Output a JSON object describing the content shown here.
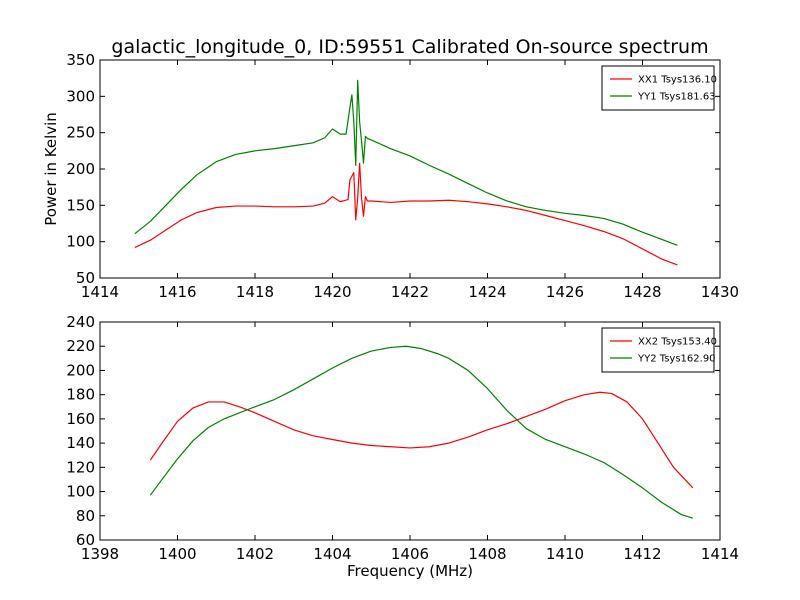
{
  "figure_title": "galactic_longitude_0, ID:59551 Calibrated On-source spectrum",
  "chart_data": [
    {
      "type": "line",
      "title": "galactic_longitude_0, ID:59551 Calibrated On-source spectrum",
      "xlabel": "",
      "ylabel": "Power in Kelvin",
      "xlim": [
        1414,
        1430
      ],
      "ylim": [
        50,
        350
      ],
      "xticks": [
        1414,
        1416,
        1418,
        1420,
        1422,
        1424,
        1426,
        1428,
        1430
      ],
      "yticks": [
        50,
        100,
        150,
        200,
        250,
        300,
        350
      ],
      "grid": false,
      "legend_position": "top-right",
      "series": [
        {
          "name": "XX1 Tsys136.10",
          "color": "#ff0000",
          "x": [
            1414.9,
            1415.3,
            1415.7,
            1416.1,
            1416.5,
            1417.0,
            1417.5,
            1418.0,
            1418.5,
            1419.0,
            1419.5,
            1419.8,
            1420.0,
            1420.2,
            1420.4,
            1420.45,
            1420.55,
            1420.6,
            1420.65,
            1420.7,
            1420.75,
            1420.8,
            1420.85,
            1420.9,
            1421.0,
            1421.5,
            1422.0,
            1422.5,
            1423.0,
            1423.5,
            1424.0,
            1424.5,
            1425.0,
            1425.5,
            1426.0,
            1426.5,
            1427.0,
            1427.5,
            1428.0,
            1428.5,
            1428.9
          ],
          "y": [
            92,
            102,
            116,
            130,
            140,
            147,
            149,
            149,
            148,
            148,
            149,
            153,
            162,
            155,
            158,
            185,
            195,
            130,
            160,
            208,
            160,
            135,
            162,
            156,
            156,
            154,
            156,
            156,
            157,
            155,
            152,
            148,
            143,
            136,
            129,
            122,
            114,
            104,
            90,
            76,
            68
          ]
        },
        {
          "name": "YY1 Tsys181.63",
          "color": "#008000",
          "x": [
            1414.9,
            1415.3,
            1415.7,
            1416.1,
            1416.5,
            1417.0,
            1417.5,
            1418.0,
            1418.5,
            1419.0,
            1419.5,
            1419.8,
            1420.0,
            1420.2,
            1420.35,
            1420.45,
            1420.5,
            1420.55,
            1420.6,
            1420.65,
            1420.7,
            1420.75,
            1420.8,
            1420.85,
            1420.9,
            1421.0,
            1421.5,
            1422.0,
            1422.5,
            1423.0,
            1423.5,
            1424.0,
            1424.5,
            1425.0,
            1425.5,
            1426.0,
            1426.5,
            1427.0,
            1427.5,
            1428.0,
            1428.5,
            1428.9
          ],
          "y": [
            111,
            128,
            150,
            172,
            192,
            210,
            220,
            225,
            228,
            232,
            236,
            243,
            255,
            248,
            248,
            285,
            302,
            265,
            205,
            322,
            265,
            238,
            208,
            245,
            242,
            240,
            228,
            218,
            205,
            193,
            180,
            167,
            156,
            148,
            143,
            139,
            136,
            132,
            124,
            113,
            103,
            95
          ]
        }
      ]
    },
    {
      "type": "line",
      "title": "",
      "xlabel": "Frequency (MHz)",
      "ylabel": "",
      "xlim": [
        1398,
        1414
      ],
      "ylim": [
        60,
        240
      ],
      "xticks": [
        1398,
        1400,
        1402,
        1404,
        1406,
        1408,
        1410,
        1412,
        1414
      ],
      "yticks": [
        60,
        80,
        100,
        120,
        140,
        160,
        180,
        200,
        220,
        240
      ],
      "grid": false,
      "legend_position": "top-right",
      "series": [
        {
          "name": "XX2 Tsys153.40",
          "color": "#ff0000",
          "x": [
            1399.3,
            1399.6,
            1400.0,
            1400.4,
            1400.8,
            1401.2,
            1401.6,
            1402.0,
            1402.5,
            1403.0,
            1403.5,
            1404.0,
            1404.5,
            1405.0,
            1405.5,
            1406.0,
            1406.5,
            1407.0,
            1407.5,
            1408.0,
            1408.5,
            1409.0,
            1409.5,
            1410.0,
            1410.5,
            1410.9,
            1411.2,
            1411.6,
            1412.0,
            1412.4,
            1412.8,
            1413.3
          ],
          "y": [
            126,
            140,
            158,
            169,
            174,
            174,
            170,
            165,
            158,
            151,
            146,
            143,
            140,
            138,
            137,
            136,
            137,
            140,
            145,
            151,
            156,
            162,
            168,
            175,
            180,
            182,
            181,
            174,
            160,
            140,
            120,
            103
          ]
        },
        {
          "name": "YY2 Tsys162.90",
          "color": "#008000",
          "x": [
            1399.3,
            1399.6,
            1400.0,
            1400.4,
            1400.8,
            1401.2,
            1401.6,
            1402.0,
            1402.5,
            1403.0,
            1403.5,
            1404.0,
            1404.5,
            1405.0,
            1405.5,
            1405.9,
            1406.3,
            1406.7,
            1407.0,
            1407.5,
            1408.0,
            1408.5,
            1409.0,
            1409.5,
            1410.0,
            1410.5,
            1411.0,
            1411.5,
            1412.0,
            1412.5,
            1413.0,
            1413.3
          ],
          "y": [
            97,
            110,
            127,
            142,
            153,
            160,
            165,
            170,
            176,
            184,
            193,
            202,
            210,
            216,
            219,
            220,
            218,
            214,
            210,
            200,
            185,
            167,
            152,
            143,
            137,
            131,
            124,
            114,
            103,
            91,
            81,
            78
          ]
        }
      ]
    }
  ]
}
